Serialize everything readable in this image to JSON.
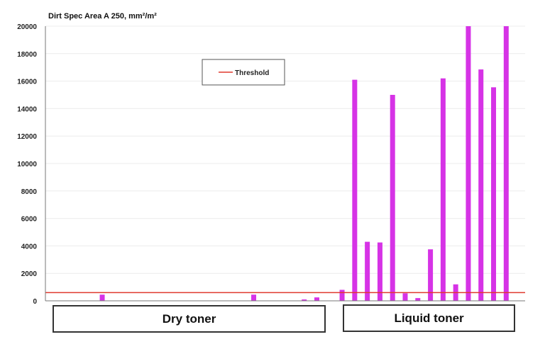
{
  "chart_data": {
    "type": "bar",
    "title": "Dirt Spec Area A 250, mm²/m²",
    "ylim": [
      0,
      20000
    ],
    "yticks": [
      0,
      2000,
      4000,
      6000,
      8000,
      10000,
      12000,
      14000,
      16000,
      18000,
      20000
    ],
    "grid": true,
    "legend": {
      "position": "top-center",
      "entries": [
        "Threshold"
      ]
    },
    "threshold": {
      "name": "Threshold",
      "value": 600,
      "color": "#e0392e"
    },
    "bar_color": "#d633e6",
    "slots": 38,
    "bars": [
      {
        "slot": 4,
        "value": 450
      },
      {
        "slot": 16,
        "value": 450
      },
      {
        "slot": 20,
        "value": 100
      },
      {
        "slot": 21,
        "value": 250
      },
      {
        "slot": 23,
        "value": 800
      },
      {
        "slot": 24,
        "value": 16100
      },
      {
        "slot": 25,
        "value": 4300
      },
      {
        "slot": 26,
        "value": 4250
      },
      {
        "slot": 27,
        "value": 15000
      },
      {
        "slot": 28,
        "value": 550
      },
      {
        "slot": 29,
        "value": 200
      },
      {
        "slot": 30,
        "value": 3750
      },
      {
        "slot": 31,
        "value": 16200
      },
      {
        "slot": 32,
        "value": 1200
      },
      {
        "slot": 33,
        "value": 20000
      },
      {
        "slot": 34,
        "value": 16850
      },
      {
        "slot": 35,
        "value": 15550
      },
      {
        "slot": 36,
        "value": 20000
      }
    ],
    "groups": [
      {
        "label": "Dry toner",
        "start_slot": 0,
        "end_slot": 22
      },
      {
        "label": "Liquid toner",
        "start_slot": 23,
        "end_slot": 37
      }
    ]
  }
}
